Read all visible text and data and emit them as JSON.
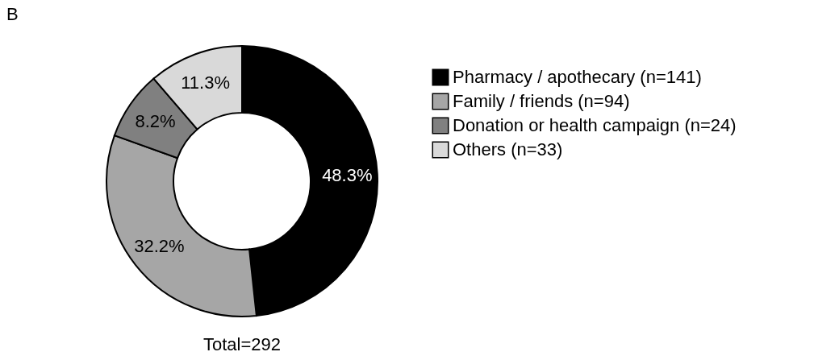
{
  "chart_data": {
    "type": "donut",
    "title": "B",
    "categories": [
      "Pharmacy / apothecary (n=141)",
      "Family / friends (n=94)",
      "Donation or health campaign (n=24)",
      "Others (n=33)"
    ],
    "values": [
      48.3,
      32.2,
      8.2,
      11.3
    ],
    "colors": [
      "#000000",
      "#a6a6a6",
      "#808080",
      "#d9d9d9"
    ],
    "value_labels": [
      "48.3%",
      "32.2%",
      "8.2%",
      "11.3%"
    ],
    "annotations": [
      "Total=292"
    ],
    "legend": "top right"
  }
}
